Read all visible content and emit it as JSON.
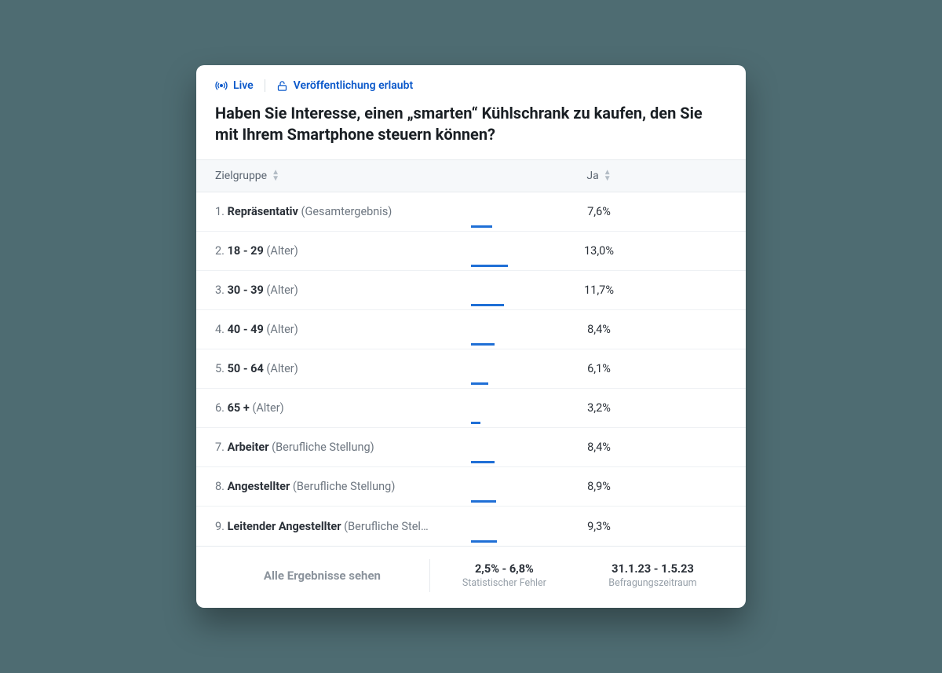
{
  "status": {
    "live_label": "Live",
    "publish_label": "Veröffentlichung erlaubt",
    "color": "#0a58ca"
  },
  "question": "Haben Sie Interesse, einen „smarten“ Kühlschrank zu kaufen, den Sie mit Ihrem Smartphone steuern können?",
  "table": {
    "col_group_label": "Zielgruppe",
    "col_value_label": "Ja",
    "bar_color": "#1f6fd6",
    "bar_max_pct": 100,
    "rows": [
      {
        "idx": "1.",
        "name": "Repräsentativ",
        "cat": "(Gesamtergebnis)",
        "value": 7.6,
        "value_label": "7,6%"
      },
      {
        "idx": "2.",
        "name": "18 - 29",
        "cat": "(Alter)",
        "value": 13.0,
        "value_label": "13,0%"
      },
      {
        "idx": "3.",
        "name": "30 - 39",
        "cat": "(Alter)",
        "value": 11.7,
        "value_label": "11,7%"
      },
      {
        "idx": "4.",
        "name": "40 - 49",
        "cat": "(Alter)",
        "value": 8.4,
        "value_label": "8,4%"
      },
      {
        "idx": "5.",
        "name": "50 - 64",
        "cat": "(Alter)",
        "value": 6.1,
        "value_label": "6,1%"
      },
      {
        "idx": "6.",
        "name": "65 +",
        "cat": "(Alter)",
        "value": 3.2,
        "value_label": "3,2%"
      },
      {
        "idx": "7.",
        "name": "Arbeiter",
        "cat": "(Berufliche Stellung)",
        "value": 8.4,
        "value_label": "8,4%"
      },
      {
        "idx": "8.",
        "name": "Angestellter",
        "cat": "(Berufliche Stellung)",
        "value": 8.9,
        "value_label": "8,9%"
      },
      {
        "idx": "9.",
        "name": "Leitender Angestellter",
        "cat": "(Berufliche Stel…",
        "value": 9.3,
        "value_label": "9,3%"
      }
    ]
  },
  "footer": {
    "see_all_label": "Alle Ergebnisse sehen",
    "error_value": "2,5% - 6,8%",
    "error_label": "Statistischer Fehler",
    "period_value": "31.1.23 - 1.5.23",
    "period_label": "Befragungszeitraum"
  },
  "colors": {
    "card_bg": "#ffffff",
    "page_bg": "#4e6c72",
    "border": "#e6eaee",
    "text": "#1a1f24",
    "muted": "#6d7680"
  }
}
